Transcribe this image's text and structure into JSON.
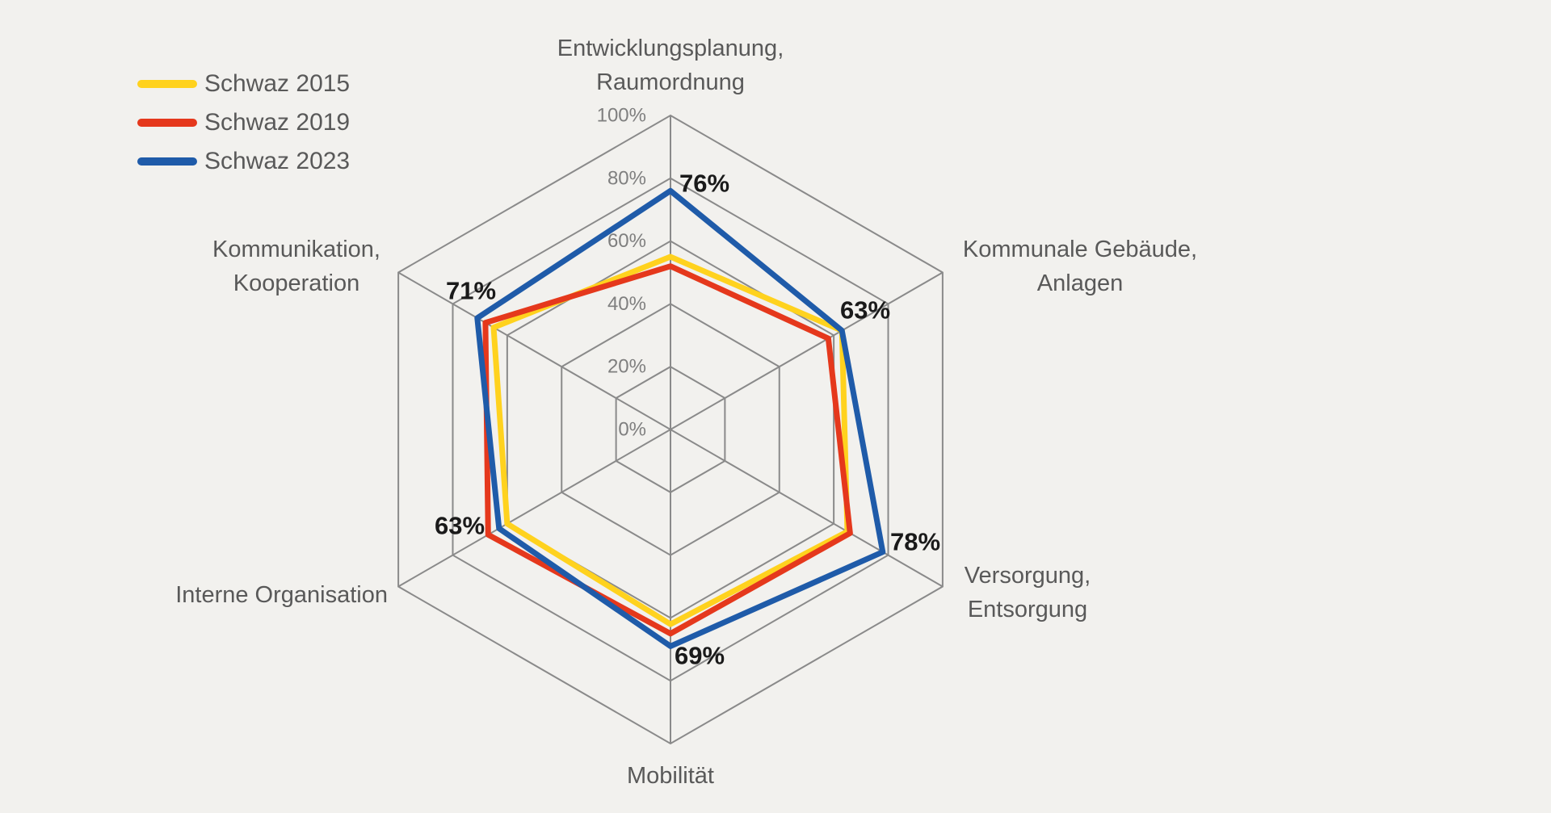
{
  "legend": {
    "items": [
      {
        "label": "Schwaz 2015",
        "color": "#ffd21e"
      },
      {
        "label": "Schwaz 2019",
        "color": "#e5381c"
      },
      {
        "label": "Schwaz 2023",
        "color": "#1f5ba9"
      }
    ]
  },
  "chart_data": {
    "type": "radar",
    "title": "",
    "axis_range": [
      0,
      100
    ],
    "ring_step_percent": 20,
    "grid": "hexagonal rings with radial spokes",
    "grid_color": "#8a8a8a",
    "background_color": "#f2f1ee",
    "legend_position": "top-left",
    "ticks": [
      "0%",
      "20%",
      "40%",
      "60%",
      "80%",
      "100%"
    ],
    "categories": [
      [
        "Entwicklungsplanung,",
        "Raumordnung"
      ],
      [
        "Kommunale Gebäude,",
        "Anlagen"
      ],
      [
        "Versorgung,",
        "Entsorgung"
      ],
      [
        "Mobilität"
      ],
      [
        "Interne Organisation"
      ],
      [
        "Kommunikation,",
        "Kooperation"
      ]
    ],
    "series": [
      {
        "name": "Schwaz 2015",
        "color": "#ffd21e",
        "values": [
          55,
          63,
          65,
          62,
          60,
          65
        ]
      },
      {
        "name": "Schwaz 2019",
        "color": "#e5381c",
        "values": [
          52,
          58,
          66,
          65,
          67,
          68
        ]
      },
      {
        "name": "Schwaz 2023",
        "color": "#1f5ba9",
        "values": [
          76,
          63,
          78,
          69,
          63,
          71
        ],
        "data_labels": [
          "76%",
          "63%",
          "78%",
          "69%",
          "63%",
          "71%"
        ]
      }
    ]
  }
}
